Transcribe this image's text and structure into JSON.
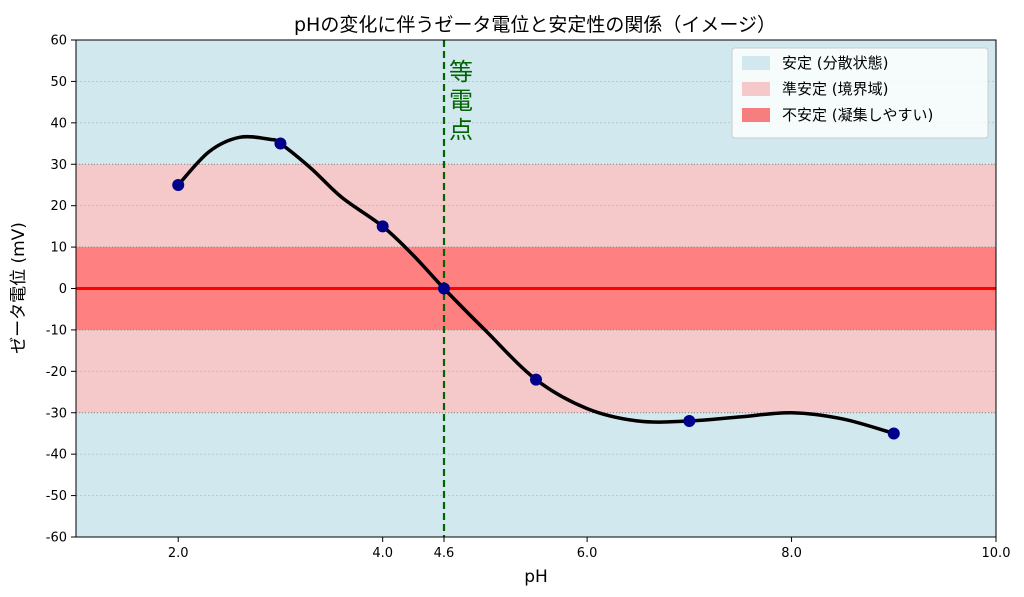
{
  "chart_data": {
    "type": "line",
    "title": "pHの変化に伴うゼータ電位と安定性の関係（イメージ）",
    "xlabel": "pH",
    "ylabel": "ゼータ電位 (mV)",
    "xlim": [
      1.0,
      10.0
    ],
    "ylim": [
      -60,
      60
    ],
    "xticks": [
      2.0,
      4.0,
      4.6,
      6.0,
      8.0,
      10.0
    ],
    "xtick_labels": [
      "2.0",
      "4.0",
      "4.6",
      "6.0",
      "8.0",
      "10.0"
    ],
    "yticks": [
      60,
      50,
      40,
      30,
      20,
      10,
      0,
      -10,
      -20,
      -30,
      -40,
      -50,
      -60
    ],
    "ytick_labels": [
      "60",
      "50",
      "40",
      "30",
      "20",
      "10",
      "0",
      "-10",
      "-20",
      "-30",
      "-40",
      "-50",
      "-60"
    ],
    "series": [
      {
        "name": "zeta",
        "x": [
          2.0,
          3.0,
          4.0,
          4.6,
          5.5,
          7.0,
          9.0
        ],
        "values": [
          25,
          35,
          15,
          0,
          -22,
          -32,
          -35
        ]
      }
    ],
    "smooth_curve": {
      "x": [
        2.0,
        2.3,
        2.6,
        2.9,
        3.0,
        3.3,
        3.6,
        4.0,
        4.3,
        4.6,
        5.0,
        5.5,
        6.0,
        6.5,
        7.0,
        7.5,
        8.0,
        8.5,
        9.0
      ],
      "y": [
        25,
        33,
        36.5,
        36,
        35,
        29,
        22,
        15,
        8,
        0,
        -10,
        -22,
        -29,
        -32,
        -32,
        -31,
        -30,
        -31.5,
        -35
      ]
    },
    "bands": [
      {
        "name": "stable",
        "ranges": [
          [
            30,
            60
          ],
          [
            -60,
            -30
          ]
        ],
        "color": "#d1e8ef"
      },
      {
        "name": "borderline",
        "ranges": [
          [
            10,
            30
          ],
          [
            -30,
            -10
          ]
        ],
        "color": "#f5c9c9"
      },
      {
        "name": "unstable",
        "ranges": [
          [
            -10,
            10
          ]
        ],
        "color": "#ff8080"
      }
    ],
    "zero_line_color": "#ff0000",
    "curve_color": "#000000",
    "marker_color": "#00008b",
    "isoelectric_point": {
      "x": 4.6,
      "label": "等電点",
      "color": "#006400"
    },
    "legend": {
      "position": "top-right",
      "entries": [
        {
          "label": "安定 (分散状態)",
          "color": "#d1e8ef"
        },
        {
          "label": "準安定 (境界域)",
          "color": "#f5c9c9"
        },
        {
          "label": "不安定 (凝集しやすい)",
          "color": "#f77e7e"
        }
      ]
    }
  }
}
